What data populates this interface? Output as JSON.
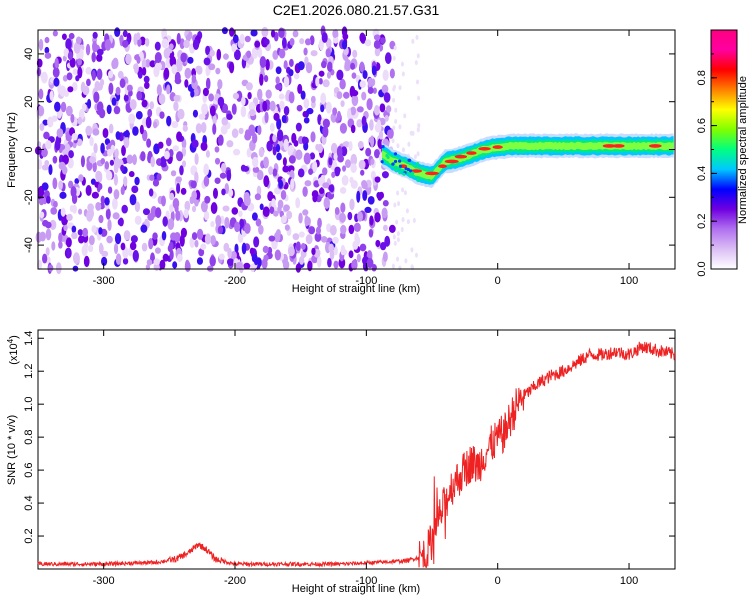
{
  "title": "C2E1.2026.080.21.57.G31",
  "chart_data": [
    {
      "type": "heatmap",
      "xlabel": "Height of straight line (km)",
      "ylabel": "Frequency (Hz)",
      "xlim": [
        -350,
        135
      ],
      "ylim": [
        -50,
        50
      ],
      "xticks": [
        -300,
        -200,
        -100,
        0,
        100
      ],
      "yticks": [
        -40,
        -20,
        0,
        20,
        40
      ],
      "noise_region_x": [
        -350,
        -80
      ],
      "ridge": {
        "x": [
          -88,
          -80,
          -70,
          -60,
          -50,
          -45,
          -40,
          -30,
          -20,
          -10,
          0,
          10,
          20,
          40,
          60,
          80,
          100,
          120,
          135
        ],
        "y": [
          -2,
          -5,
          -7,
          -10,
          -11,
          -8,
          -5,
          -4,
          -2,
          0,
          1,
          1.5,
          1.5,
          1.5,
          1.5,
          1.5,
          1.5,
          1.5,
          1.5
        ]
      },
      "colorbar": {
        "label": "Normalized spectral amplitude",
        "range": [
          0,
          1
        ],
        "ticks": [
          0.0,
          0.2,
          0.4,
          0.6,
          0.8
        ],
        "colors": [
          "#ffffff",
          "#dcbff5",
          "#b070f0",
          "#7000e0",
          "#0000ff",
          "#00c8ff",
          "#00ff80",
          "#80ff00",
          "#ffff00",
          "#ff8000",
          "#ff0000",
          "#ff00a0",
          "#ff0080"
        ]
      }
    },
    {
      "type": "line",
      "xlabel": "Height of straight line (km)",
      "ylabel": "SNR (10 * v/v)",
      "yscale_label": "(x10",
      "yscale_exp": "4",
      "xlim": [
        -350,
        135
      ],
      "ylim": [
        0,
        1.45
      ],
      "xticks": [
        -300,
        -200,
        -100,
        0,
        100
      ],
      "yticks": [
        0.2,
        0.4,
        0.6,
        0.8,
        1.0,
        1.2,
        1.4
      ],
      "series": [
        {
          "color": "#ee2222",
          "x": [
            -350,
            -300,
            -260,
            -245,
            -235,
            -228,
            -222,
            -215,
            -200,
            -160,
            -120,
            -90,
            -70,
            -55,
            -50,
            -45,
            -40,
            -35,
            -30,
            -25,
            -20,
            -15,
            -10,
            -5,
            0,
            5,
            10,
            15,
            20,
            30,
            40,
            50,
            60,
            70,
            80,
            90,
            100,
            110,
            120,
            135
          ],
          "y": [
            0.03,
            0.03,
            0.04,
            0.06,
            0.1,
            0.15,
            0.12,
            0.06,
            0.03,
            0.03,
            0.03,
            0.04,
            0.05,
            0.08,
            0.18,
            0.3,
            0.4,
            0.5,
            0.55,
            0.6,
            0.65,
            0.62,
            0.7,
            0.75,
            0.8,
            0.82,
            0.92,
            1.0,
            1.05,
            1.12,
            1.17,
            1.2,
            1.25,
            1.3,
            1.3,
            1.32,
            1.3,
            1.35,
            1.33,
            1.3
          ]
        }
      ]
    }
  ]
}
